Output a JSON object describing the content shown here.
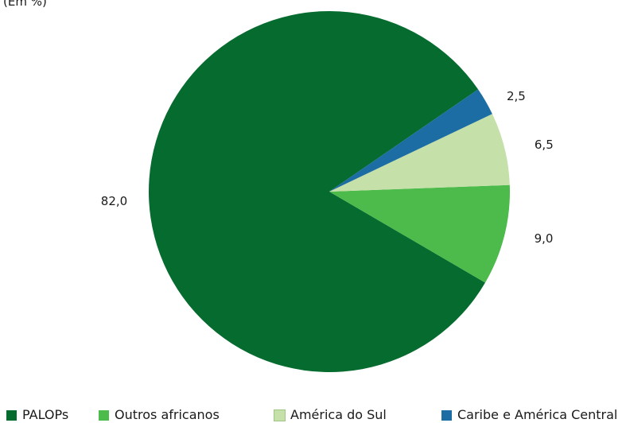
{
  "chart_data": {
    "type": "pie",
    "title": "",
    "unit_label": "(Em %)",
    "slices": [
      {
        "label": "PALOPs",
        "value": 82.0,
        "display": "82,0",
        "color": "#066b2e"
      },
      {
        "label": "Outros africanos",
        "value": 9.0,
        "display": "9,0",
        "color": "#4dbb4b"
      },
      {
        "label": "América do Sul",
        "value": 6.5,
        "display": "6,5",
        "color": "#c5e0a9"
      },
      {
        "label": "Caribe e América Central",
        "value": 2.5,
        "display": "2,5",
        "color": "#1c6da3"
      }
    ],
    "legend_position": "bottom"
  }
}
